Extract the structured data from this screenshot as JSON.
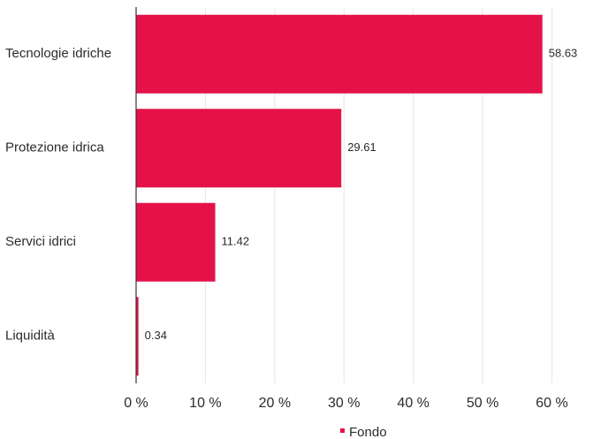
{
  "chart_data": {
    "type": "bar",
    "orientation": "horizontal",
    "categories": [
      "Tecnologie idriche",
      "Protezione idrica",
      "Servici idrici",
      "Liquidità"
    ],
    "series": [
      {
        "name": "Fondo",
        "values": [
          58.63,
          29.61,
          11.42,
          0.34
        ],
        "color": "#e5124a"
      }
    ],
    "value_labels": [
      "58.63",
      "29.61",
      "11.42",
      "0.34"
    ],
    "x_ticks": [
      "0 %",
      "10 %",
      "20 %",
      "30 %",
      "40 %",
      "50 %",
      "60 %"
    ],
    "xlim": [
      0,
      60
    ],
    "grid": true,
    "legend_position": "bottom-center"
  }
}
